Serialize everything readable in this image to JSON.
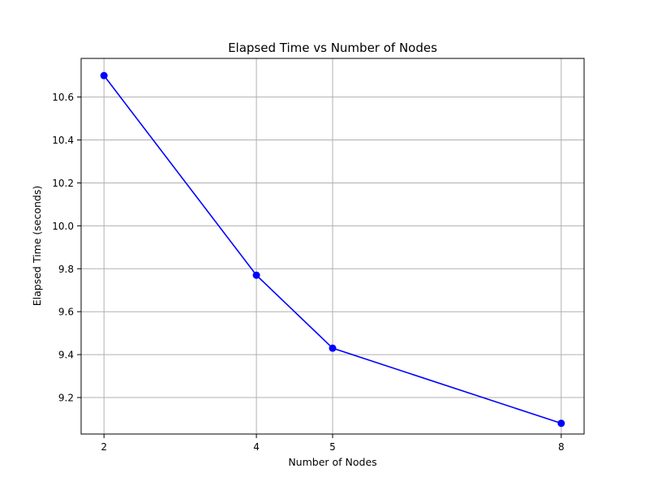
{
  "chart_data": {
    "type": "line",
    "title": "Elapsed Time vs Number of Nodes",
    "xlabel": "Number of Nodes",
    "ylabel": "Elapsed Time (seconds)",
    "x": [
      2,
      4,
      5,
      8
    ],
    "series": [
      {
        "values": [
          10.7,
          9.77,
          9.43,
          9.08
        ],
        "color": "#0000ff",
        "marker": "circle"
      }
    ],
    "xlim": [
      1.7,
      8.3
    ],
    "ylim": [
      9.03,
      10.78
    ],
    "xticks": [
      2,
      4,
      5,
      8
    ],
    "xtick_labels": [
      "2",
      "4",
      "5",
      "8"
    ],
    "yticks": [
      9.2,
      9.4,
      9.6,
      9.8,
      10.0,
      10.2,
      10.4,
      10.6
    ],
    "ytick_labels": [
      "9.2",
      "9.4",
      "9.6",
      "9.8",
      "10.0",
      "10.2",
      "10.4",
      "10.6"
    ],
    "grid": true,
    "grid_color": "#b0b0b0"
  }
}
